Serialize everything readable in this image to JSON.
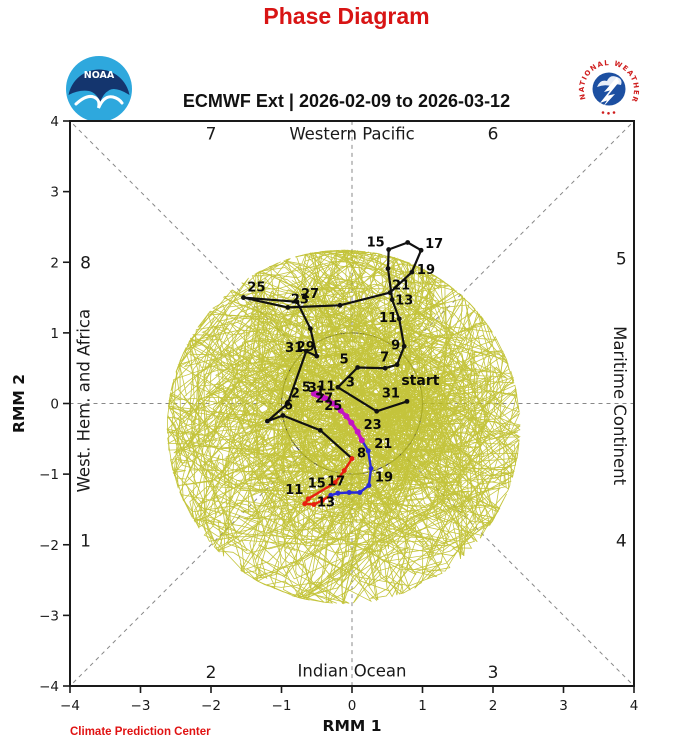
{
  "header": {
    "page_title": "Phase Diagram",
    "subtitle": "ECMWF Ext | 2026-02-09 to 2026-03-12",
    "noaa_logo_text": "NOAA",
    "nws_ring_text": "NATIONAL WEATHER SERVICE"
  },
  "footer": {
    "credit": "Climate Prediction Center"
  },
  "colors": {
    "title_red": "#d81414",
    "credit_red": "#e01212",
    "ensemble_olive": "#bcbd22",
    "observation_black": "#111111",
    "week1_red": "#e82010",
    "week2_blue": "#2a2ad8",
    "week3_magenta": "#c414c4",
    "guide_gray": "#888888",
    "frame_black": "#1a1a1a"
  },
  "chart_data": {
    "type": "line",
    "title": "ECMWF Ext | 2026-02-09 to 2026-03-12",
    "xlabel": "RMM 1",
    "ylabel": "RMM 2",
    "xlim": [
      -4,
      4
    ],
    "ylim": [
      -4,
      4
    ],
    "xticks": [
      -4,
      -3,
      -2,
      -1,
      0,
      1,
      2,
      3,
      4
    ],
    "yticks": [
      -4,
      -3,
      -2,
      -1,
      0,
      1,
      2,
      3,
      4
    ],
    "grid": false,
    "unit_circle_radius": 1,
    "phase_labels": [
      {
        "text": "1",
        "x": -3.78,
        "y": -1.94
      },
      {
        "text": "2",
        "x": -2.0,
        "y": -3.8
      },
      {
        "text": "3",
        "x": 2.0,
        "y": -3.8
      },
      {
        "text": "4",
        "x": 3.82,
        "y": -1.94
      },
      {
        "text": "5",
        "x": 3.82,
        "y": 2.05
      },
      {
        "text": "6",
        "x": 2.0,
        "y": 3.82
      },
      {
        "text": "7",
        "x": -2.0,
        "y": 3.82
      },
      {
        "text": "8",
        "x": -3.78,
        "y": 2.0
      }
    ],
    "region_labels": [
      {
        "text": "Western Pacific",
        "x": 0,
        "y": 3.82,
        "rotation": 0
      },
      {
        "text": "Indian Ocean",
        "x": 0,
        "y": -3.78,
        "rotation": 0
      },
      {
        "text": "Maritime Continent",
        "x": 3.8,
        "y": -0.03,
        "rotation": 90
      },
      {
        "text": "West. Hem. and Africa",
        "x": -3.81,
        "y": 0.04,
        "rotation": -90
      }
    ],
    "series": [
      {
        "name": "observation",
        "color": "#111111",
        "width": 2.2,
        "marker": 2.4,
        "points": [
          [
            0.78,
            0.03,
            "31",
            -7,
            -4,
            "end"
          ],
          [
            0.35,
            -0.11
          ],
          [
            -0.2,
            0.23,
            "3",
            8,
            -1,
            "start"
          ],
          [
            0.08,
            0.51,
            "5",
            -9,
            -4,
            "end"
          ],
          [
            0.47,
            0.5
          ],
          [
            0.64,
            0.55,
            "7",
            -8,
            -3,
            "end"
          ],
          [
            0.74,
            0.81,
            "9",
            -4,
            3,
            "end"
          ],
          [
            0.67,
            1.2,
            "11",
            -2,
            3,
            "end"
          ],
          [
            0.57,
            1.47,
            "13",
            3,
            5,
            "start"
          ],
          [
            0.51,
            1.91
          ],
          [
            0.52,
            2.18,
            "15",
            -4,
            -3,
            "end"
          ],
          [
            0.79,
            2.28
          ],
          [
            0.98,
            2.17,
            "17",
            4,
            -2,
            "start"
          ],
          [
            0.85,
            1.86,
            "19",
            5,
            2,
            "start"
          ],
          [
            0.54,
            1.57,
            "21",
            2,
            -3,
            "start"
          ],
          [
            -0.17,
            1.39
          ],
          [
            -0.91,
            1.36,
            "23",
            3,
            -4,
            "start"
          ],
          [
            -1.54,
            1.5,
            "25",
            4,
            -6,
            "start"
          ],
          [
            -0.78,
            1.44,
            "27",
            4,
            -4,
            "start"
          ],
          [
            -0.59,
            1.06
          ],
          [
            -0.5,
            0.67,
            "29",
            -2,
            -5,
            "end"
          ],
          [
            -0.65,
            0.74,
            "31",
            -3,
            1,
            "end"
          ],
          [
            -0.91,
            0.0,
            "2",
            3,
            -6,
            "start"
          ],
          [
            -1.2,
            -0.25
          ],
          [
            -0.98,
            -0.17,
            "6",
            1,
            -6,
            "start"
          ],
          [
            -0.45,
            -0.38
          ],
          [
            0.0,
            -0.78,
            "8",
            5,
            -1,
            "start"
          ]
        ],
        "annotations": [
          {
            "text": "start",
            "x": 0.7,
            "y": 0.26,
            "anchor": "start",
            "size": 14
          }
        ]
      },
      {
        "name": "forecast-week1",
        "color": "#e82010",
        "width": 2.4,
        "marker": 2.5,
        "points": [
          [
            0.0,
            -0.78
          ],
          [
            -0.11,
            -0.95
          ],
          [
            -0.24,
            -1.12
          ],
          [
            -0.62,
            -1.35,
            "11",
            -5,
            -5,
            "end"
          ],
          [
            -0.67,
            -1.42
          ],
          [
            -0.54,
            -1.43,
            "13",
            3,
            2,
            "start"
          ],
          [
            -0.42,
            -1.37
          ],
          [
            -0.3,
            -1.3,
            "15",
            -5,
            -8,
            "end"
          ]
        ]
      },
      {
        "name": "forecast-week2",
        "color": "#2a2ad8",
        "width": 2.4,
        "marker": 2.5,
        "points": [
          [
            -0.3,
            -1.3
          ],
          [
            -0.2,
            -1.27
          ],
          [
            -0.04,
            -1.26,
            "17",
            -4,
            -7,
            "end"
          ],
          [
            0.11,
            -1.26
          ],
          [
            0.24,
            -1.16,
            "19",
            6,
            -4,
            "start"
          ],
          [
            0.27,
            -0.92
          ],
          [
            0.23,
            -0.67,
            "21",
            6,
            -3,
            "start"
          ],
          [
            0.14,
            -0.52
          ]
        ]
      },
      {
        "name": "forecast-week3plus",
        "color": "#c414c4",
        "width": 3.4,
        "marker": 3,
        "points": [
          [
            0.14,
            -0.52
          ],
          [
            0.08,
            -0.4,
            "23",
            6,
            -3,
            "start"
          ],
          [
            -0.01,
            -0.27
          ],
          [
            -0.08,
            -0.18,
            "25",
            -4,
            -6,
            "end"
          ],
          [
            -0.16,
            -0.1
          ],
          [
            -0.21,
            -0.04,
            "27",
            -4,
            -4,
            "end"
          ],
          [
            -0.27,
            0.0
          ],
          [
            -0.33,
            0.04,
            "1",
            -4,
            -5,
            "end"
          ],
          [
            -0.37,
            0.07
          ],
          [
            -0.4,
            0.08,
            "3",
            -7,
            -6,
            "end"
          ],
          [
            -0.42,
            0.1
          ],
          [
            -0.44,
            0.1,
            "5",
            -10,
            -5,
            "end"
          ],
          [
            -0.45,
            0.11
          ],
          [
            -0.47,
            0.11
          ],
          [
            -0.48,
            0.13
          ],
          [
            -0.5,
            0.13
          ],
          [
            -0.51,
            0.13
          ],
          [
            -0.52,
            0.14,
            "11",
            2,
            -3,
            "start"
          ],
          [
            -0.54,
            0.14
          ]
        ]
      }
    ],
    "ensemble": {
      "name": "ensemble-members",
      "color": "#bcbd22",
      "members": 105,
      "steps": 46,
      "seed": 1234567,
      "start": [
        0.78,
        0.03
      ],
      "center": [
        -0.12,
        -0.33
      ],
      "max_radius": 2.5,
      "line_width": 0.8,
      "opacity": 0.88
    }
  }
}
